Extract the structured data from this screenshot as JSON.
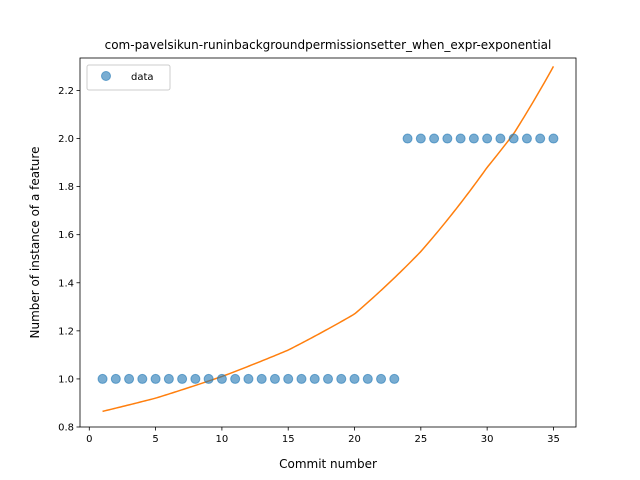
{
  "chart_data": {
    "type": "scatter",
    "title": "com-pavelsikun-runinbackgroundpermissionsetter_when_expr-exponential",
    "xlabel": "Commit number",
    "ylabel": "Number of instance of a feature",
    "xlim": [
      -0.7,
      36.7
    ],
    "ylim": [
      0.8,
      2.335
    ],
    "xticks": [
      0,
      5,
      10,
      15,
      20,
      25,
      30,
      35
    ],
    "yticks": [
      0.8,
      1.0,
      1.2,
      1.4,
      1.6,
      1.8,
      2.0,
      2.2
    ],
    "ytick_labels": [
      "0.8",
      "1.0",
      "1.2",
      "1.4",
      "1.6",
      "1.8",
      "2.0",
      "2.2"
    ],
    "legend": {
      "position": "upper-left",
      "entries": [
        "data"
      ]
    },
    "colors": {
      "data": "#1f77b4",
      "fit": "#ff7f0e"
    },
    "series": [
      {
        "name": "data",
        "style": "markers",
        "x": [
          1,
          2,
          3,
          4,
          5,
          6,
          7,
          8,
          9,
          10,
          11,
          12,
          13,
          14,
          15,
          16,
          17,
          18,
          19,
          20,
          21,
          22,
          23,
          24,
          25,
          26,
          27,
          28,
          29,
          30,
          31,
          32,
          33,
          34,
          35
        ],
        "y": [
          1,
          1,
          1,
          1,
          1,
          1,
          1,
          1,
          1,
          1,
          1,
          1,
          1,
          1,
          1,
          1,
          1,
          1,
          1,
          1,
          1,
          1,
          1,
          2,
          2,
          2,
          2,
          2,
          2,
          2,
          2,
          2,
          2,
          2,
          2
        ]
      },
      {
        "style": "line",
        "x": [
          1,
          5,
          10,
          15,
          20,
          25,
          30,
          32,
          35
        ],
        "y": [
          0.865,
          0.92,
          1.01,
          1.12,
          1.27,
          1.53,
          1.88,
          2.02,
          2.3
        ]
      }
    ]
  }
}
